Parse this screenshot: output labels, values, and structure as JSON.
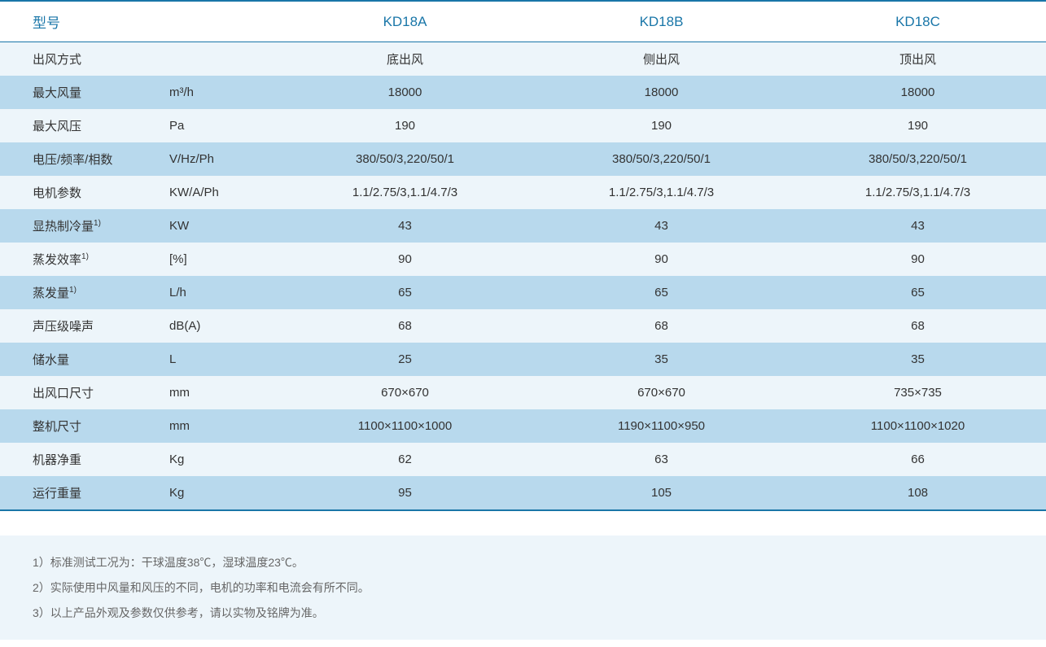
{
  "table": {
    "header": {
      "model_label": "型号",
      "col1": "KD18A",
      "col2": "KD18B",
      "col3": "KD18C"
    },
    "rows": [
      {
        "label": "出风方式",
        "unit": "",
        "v1": "底出风",
        "v2": "侧出风",
        "v3": "顶出风",
        "sup": ""
      },
      {
        "label": "最大风量",
        "unit": "m³/h",
        "v1": "18000",
        "v2": "18000",
        "v3": "18000",
        "sup": ""
      },
      {
        "label": "最大风压",
        "unit": "Pa",
        "v1": "190",
        "v2": "190",
        "v3": "190",
        "sup": ""
      },
      {
        "label": "电压/频率/相数",
        "unit": "V/Hz/Ph",
        "v1": "380/50/3,220/50/1",
        "v2": "380/50/3,220/50/1",
        "v3": "380/50/3,220/50/1",
        "sup": ""
      },
      {
        "label": "电机参数",
        "unit": "KW/A/Ph",
        "v1": "1.1/2.75/3,1.1/4.7/3",
        "v2": "1.1/2.75/3,1.1/4.7/3",
        "v3": "1.1/2.75/3,1.1/4.7/3",
        "sup": ""
      },
      {
        "label": "显热制冷量",
        "unit": "KW",
        "v1": "43",
        "v2": "43",
        "v3": "43",
        "sup": "1)"
      },
      {
        "label": "蒸发效率",
        "unit": "[%]",
        "v1": "90",
        "v2": "90",
        "v3": "90",
        "sup": "1)"
      },
      {
        "label": "蒸发量",
        "unit": "L/h",
        "v1": "65",
        "v2": "65",
        "v3": "65",
        "sup": "1)"
      },
      {
        "label": "声压级噪声",
        "unit": "dB(A)",
        "v1": "68",
        "v2": "68",
        "v3": "68",
        "sup": ""
      },
      {
        "label": "储水量",
        "unit": "L",
        "v1": "25",
        "v2": "35",
        "v3": "35",
        "sup": ""
      },
      {
        "label": "出风口尺寸",
        "unit": "mm",
        "v1": "670×670",
        "v2": "670×670",
        "v3": "735×735",
        "sup": ""
      },
      {
        "label": "整机尺寸",
        "unit": "mm",
        "v1": "1100×1100×1000",
        "v2": "1190×1100×950",
        "v3": "1100×1100×1020",
        "sup": ""
      },
      {
        "label": "机器净重",
        "unit": "Kg",
        "v1": "62",
        "v2": "63",
        "v3": "66",
        "sup": ""
      },
      {
        "label": "运行重量",
        "unit": "Kg",
        "v1": "95",
        "v2": "105",
        "v3": "108",
        "sup": ""
      }
    ]
  },
  "footnotes": [
    "1）标准测试工况为：干球温度38℃，湿球温度23℃。",
    "2）实际使用中风量和风压的不同，电机的功率和电流会有所不同。",
    "3）以上产品外观及参数仅供参考，请以实物及铭牌为准。"
  ],
  "colors": {
    "header_text": "#1976a8",
    "border": "#1976a8",
    "row_odd_bg": "#edf5fa",
    "row_even_bg": "#b8d9ed",
    "cell_text": "#333333",
    "footnote_bg": "#edf5fa",
    "footnote_text": "#666666"
  }
}
